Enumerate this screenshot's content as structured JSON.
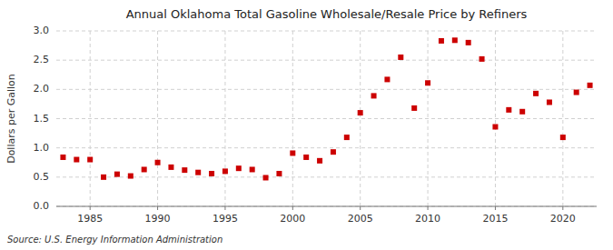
{
  "chart_data": {
    "type": "scatter",
    "title": "Annual Oklahoma Total Gasoline Wholesale/Resale Price by Refiners",
    "ylabel": "Dollars per Gallon",
    "source": "Source: U.S. Energy Information Administration",
    "x": [
      1983,
      1984,
      1985,
      1986,
      1987,
      1988,
      1989,
      1990,
      1991,
      1992,
      1993,
      1994,
      1995,
      1996,
      1997,
      1998,
      1999,
      2000,
      2001,
      2002,
      2003,
      2004,
      2005,
      2006,
      2007,
      2008,
      2009,
      2010,
      2011,
      2012,
      2013,
      2014,
      2015,
      2016,
      2017,
      2018,
      2019,
      2020,
      2021,
      2022
    ],
    "values": [
      0.84,
      0.8,
      0.8,
      0.5,
      0.55,
      0.52,
      0.63,
      0.75,
      0.67,
      0.62,
      0.58,
      0.56,
      0.6,
      0.65,
      0.63,
      0.49,
      0.56,
      0.91,
      0.84,
      0.78,
      0.93,
      1.18,
      1.6,
      1.89,
      2.17,
      2.55,
      1.68,
      2.11,
      2.83,
      2.84,
      2.8,
      2.52,
      1.36,
      1.65,
      1.62,
      1.93,
      1.78,
      1.18,
      1.95,
      2.07
    ],
    "color": "#cc0000",
    "marker": "square",
    "xlim": [
      1982.5,
      2022.5
    ],
    "ylim": [
      0.0,
      3.0
    ],
    "xticks": [
      1985,
      1990,
      1995,
      2000,
      2005,
      2010,
      2015,
      2020
    ],
    "yticks": [
      {
        "value": 0,
        "label": "0.0"
      },
      0.5,
      {
        "value": 1,
        "label": "1.0"
      },
      1.5,
      {
        "value": 2,
        "label": "2.0"
      },
      2.5,
      {
        "value": 3,
        "label": "3.0"
      }
    ],
    "grid": true
  }
}
